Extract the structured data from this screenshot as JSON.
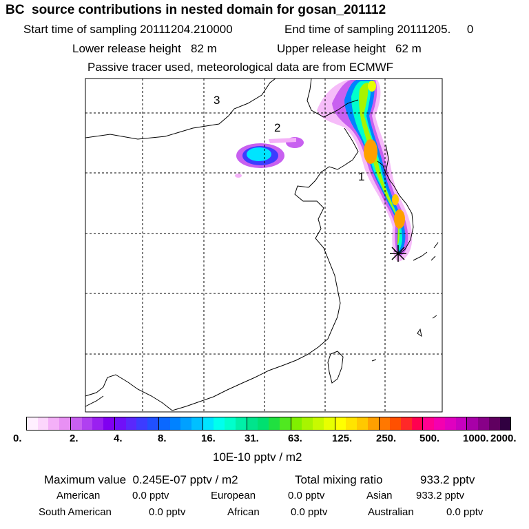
{
  "header": {
    "title": "BC  source contributions in nested domain for gosan_201112",
    "start_label": "Start time of sampling 20111204.210000",
    "end_label": "End time of sampling 20111205.     0",
    "lower_label": "Lower release height   82 m",
    "upper_label": "Upper release height   62 m",
    "note": "Passive tracer used, meteorological data are from ECMWF"
  },
  "map": {
    "region_labels": [
      "3",
      "2",
      "1"
    ],
    "receptor": "gosan"
  },
  "colorbar": {
    "ticks": [
      "0.",
      "2.",
      "4.",
      "8.",
      "16.",
      "31.",
      "63.",
      "125.",
      "250.",
      "500.",
      "1000.",
      "2000."
    ],
    "colors": [
      "#fff0ff",
      "#fcd6fc",
      "#f4b0f8",
      "#e890f4",
      "#c860f0",
      "#b040f0",
      "#9a20f0",
      "#8000f0",
      "#7010f8",
      "#5a28fc",
      "#3c3cff",
      "#2050ff",
      "#0a68ff",
      "#0082ff",
      "#00a0ff",
      "#00c0ff",
      "#00e4ff",
      "#00ffee",
      "#00ffcc",
      "#00f0a8",
      "#00e48c",
      "#00e070",
      "#20e040",
      "#50e820",
      "#80f000",
      "#a8f400",
      "#c8fa00",
      "#e8ff00",
      "#ffff00",
      "#ffe400",
      "#ffc800",
      "#ffa000",
      "#ff7800",
      "#ff5000",
      "#ff2828",
      "#ff0050",
      "#ff0090",
      "#f400b0",
      "#e000c0",
      "#c800c0",
      "#a800a8",
      "#880088",
      "#600060",
      "#300040"
    ],
    "unit": "10E-10 pptv / m2"
  },
  "footer": {
    "max_label": "Maximum value  0.245E-07 pptv / m2",
    "total_label": "Total mixing ratio",
    "total_value": "933.2 pptv",
    "regions": [
      {
        "name": "American",
        "value": "0.0 pptv"
      },
      {
        "name": "European",
        "value": "0.0 pptv"
      },
      {
        "name": "Asian",
        "value": "933.2 pptv"
      },
      {
        "name": "South American",
        "value": "0.0 pptv"
      },
      {
        "name": "African",
        "value": "0.0 pptv"
      },
      {
        "name": "Australian",
        "value": "0.0 pptv"
      }
    ]
  }
}
